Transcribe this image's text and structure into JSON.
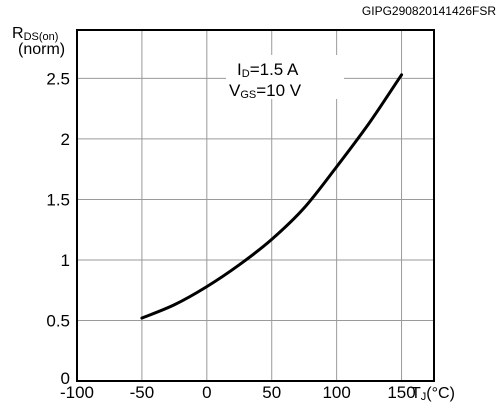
{
  "chart_data": {
    "type": "line",
    "reference_code": "GIPG290820141426FSR",
    "ylabel_main": "R",
    "ylabel_sub": "DS(on)",
    "ylabel_unit": "(norm)",
    "xlabel_main": "T",
    "xlabel_sub": "J",
    "xlabel_unit": "(°C)",
    "annotations": [
      {
        "main": "I",
        "sub": "D",
        "rest": "=1.5 A"
      },
      {
        "main": "V",
        "sub": "GS",
        "rest": "=10 V"
      }
    ],
    "xlim": [
      -100,
      175
    ],
    "ylim": [
      0,
      2.9
    ],
    "x_ticks": [
      -100,
      -50,
      0,
      50,
      100,
      150
    ],
    "x_tick_labels": [
      "-100",
      "-50",
      "0",
      "50",
      "100",
      "150"
    ],
    "y_ticks": [
      0,
      0.5,
      1,
      1.5,
      2,
      2.5
    ],
    "y_tick_labels": [
      "0",
      "0.5",
      "1",
      "1.5",
      "2",
      "2.5"
    ],
    "grid": true,
    "series": [
      {
        "x": [
          -50,
          -25,
          0,
          25,
          50,
          75,
          100,
          125,
          150
        ],
        "y": [
          0.52,
          0.63,
          0.78,
          0.96,
          1.17,
          1.43,
          1.77,
          2.13,
          2.53
        ]
      }
    ]
  }
}
